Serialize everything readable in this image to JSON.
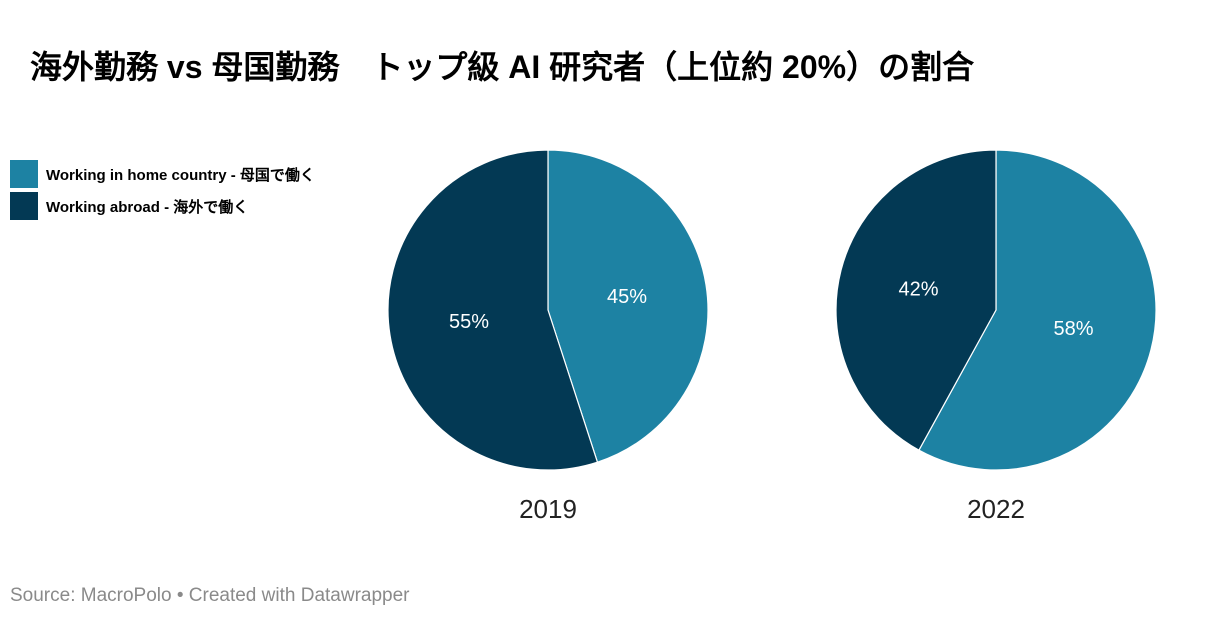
{
  "header": {
    "title": "海外勤務 vs 母国勤務　トップ級 AI 研究者（上位約 20%）の割合"
  },
  "legend": {
    "items": [
      {
        "label": "Working in home country - 母国で働く",
        "color": "#1d82a3"
      },
      {
        "label": "Working abroad - 海外で働く",
        "color": "#033954"
      }
    ]
  },
  "chart_data": [
    {
      "type": "pie",
      "title": "2019",
      "categories": [
        "Working in home country - 母国で働く",
        "Working abroad - 海外で働く"
      ],
      "values": [
        45,
        55
      ],
      "labels": [
        "45%",
        "55%"
      ],
      "colors": [
        "#1d82a3",
        "#033954"
      ],
      "start_angle_deg": 0,
      "direction": "clockwise"
    },
    {
      "type": "pie",
      "title": "2022",
      "categories": [
        "Working in home country - 母国で働く",
        "Working abroad - 海外で働く"
      ],
      "values": [
        58,
        42
      ],
      "labels": [
        "58%",
        "42%"
      ],
      "colors": [
        "#1d82a3",
        "#033954"
      ],
      "start_angle_deg": 0,
      "direction": "clockwise"
    }
  ],
  "footer": {
    "source": "Source: MacroPolo • Created with Datawrapper"
  }
}
